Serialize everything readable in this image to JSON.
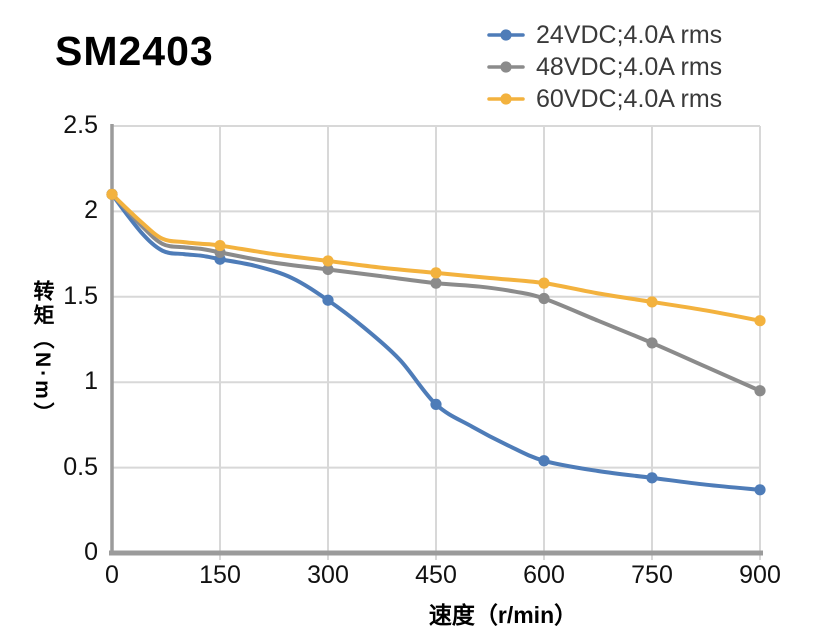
{
  "title": "SM2403",
  "chart_data": {
    "type": "line",
    "title": "SM2403",
    "xlabel": "速度（r/min）",
    "ylabel": "转矩（N·m）",
    "xlim": [
      0,
      900
    ],
    "ylim": [
      0,
      2.5
    ],
    "xticks": [
      0,
      150,
      300,
      450,
      600,
      750,
      900
    ],
    "yticks": [
      0,
      0.5,
      1,
      1.5,
      2,
      2.5
    ],
    "grid": true,
    "legend_position": "top-right",
    "series": [
      {
        "name": "24VDC;4.0A rms",
        "color": "#4E7CB8",
        "markers": [
          [
            0,
            2.1
          ],
          [
            150,
            1.72
          ],
          [
            300,
            1.48
          ],
          [
            450,
            0.87
          ],
          [
            600,
            0.54
          ],
          [
            750,
            0.44
          ],
          [
            900,
            0.37
          ]
        ],
        "points": [
          [
            0,
            2.1
          ],
          [
            40,
            1.88
          ],
          [
            70,
            1.77
          ],
          [
            100,
            1.75
          ],
          [
            125,
            1.74
          ],
          [
            150,
            1.72
          ],
          [
            200,
            1.68
          ],
          [
            250,
            1.61
          ],
          [
            300,
            1.48
          ],
          [
            350,
            1.32
          ],
          [
            400,
            1.13
          ],
          [
            450,
            0.87
          ],
          [
            500,
            0.74
          ],
          [
            550,
            0.63
          ],
          [
            600,
            0.54
          ],
          [
            675,
            0.48
          ],
          [
            750,
            0.44
          ],
          [
            825,
            0.4
          ],
          [
            900,
            0.37
          ]
        ]
      },
      {
        "name": "48VDC;4.0A rms",
        "color": "#8B8B8B",
        "markers": [
          [
            0,
            2.1
          ],
          [
            150,
            1.76
          ],
          [
            300,
            1.66
          ],
          [
            450,
            1.58
          ],
          [
            600,
            1.49
          ],
          [
            750,
            1.23
          ],
          [
            900,
            0.95
          ]
        ],
        "points": [
          [
            0,
            2.1
          ],
          [
            40,
            1.92
          ],
          [
            70,
            1.81
          ],
          [
            100,
            1.79
          ],
          [
            125,
            1.78
          ],
          [
            150,
            1.76
          ],
          [
            225,
            1.7
          ],
          [
            300,
            1.66
          ],
          [
            375,
            1.62
          ],
          [
            450,
            1.58
          ],
          [
            510,
            1.56
          ],
          [
            560,
            1.53
          ],
          [
            600,
            1.49
          ],
          [
            675,
            1.36
          ],
          [
            750,
            1.23
          ],
          [
            825,
            1.09
          ],
          [
            900,
            0.95
          ]
        ]
      },
      {
        "name": "60VDC;4.0A rms",
        "color": "#F3B23E",
        "markers": [
          [
            0,
            2.1
          ],
          [
            150,
            1.8
          ],
          [
            300,
            1.71
          ],
          [
            450,
            1.64
          ],
          [
            600,
            1.58
          ],
          [
            750,
            1.47
          ],
          [
            900,
            1.36
          ]
        ],
        "points": [
          [
            0,
            2.1
          ],
          [
            40,
            1.94
          ],
          [
            70,
            1.84
          ],
          [
            100,
            1.82
          ],
          [
            125,
            1.81
          ],
          [
            150,
            1.8
          ],
          [
            225,
            1.75
          ],
          [
            300,
            1.71
          ],
          [
            375,
            1.67
          ],
          [
            450,
            1.64
          ],
          [
            525,
            1.61
          ],
          [
            600,
            1.58
          ],
          [
            675,
            1.52
          ],
          [
            750,
            1.47
          ],
          [
            825,
            1.42
          ],
          [
            900,
            1.36
          ]
        ]
      }
    ],
    "colors": {
      "grid": "#D8D8D8",
      "axis": "#9B9B9B",
      "tick_label": "#111111",
      "legend_text": "#3A3A3A",
      "title": "#000000",
      "background": "#FFFFFF"
    }
  }
}
